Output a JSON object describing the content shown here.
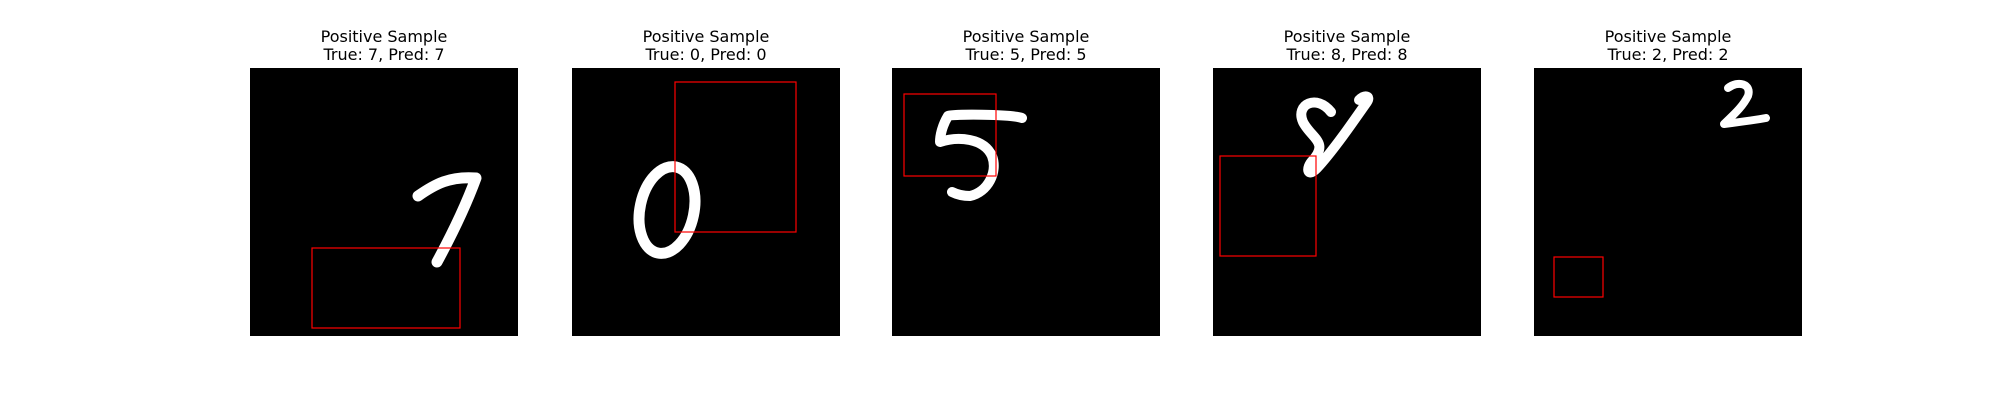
{
  "chart_data": {
    "type": "image-grid",
    "panels": [
      {
        "title": "Positive Sample",
        "subtitle": "True: 7, Pred: 7",
        "digit": "7",
        "true_label": 7,
        "pred_label": 7
      },
      {
        "title": "Positive Sample",
        "subtitle": "True: 0, Pred: 0",
        "digit": "0",
        "true_label": 0,
        "pred_label": 0
      },
      {
        "title": "Positive Sample",
        "subtitle": "True: 5, Pred: 5",
        "digit": "5",
        "true_label": 5,
        "pred_label": 5
      },
      {
        "title": "Positive Sample",
        "subtitle": "True: 8, Pred: 8",
        "digit": "8",
        "true_label": 8,
        "pred_label": 8
      },
      {
        "title": "Positive Sample",
        "subtitle": "True: 2, Pred: 2",
        "digit": "2",
        "true_label": 2,
        "pred_label": 2
      }
    ],
    "colors": {
      "background": "#000000",
      "digit": "#ffffff",
      "box": "#ff0000"
    }
  }
}
